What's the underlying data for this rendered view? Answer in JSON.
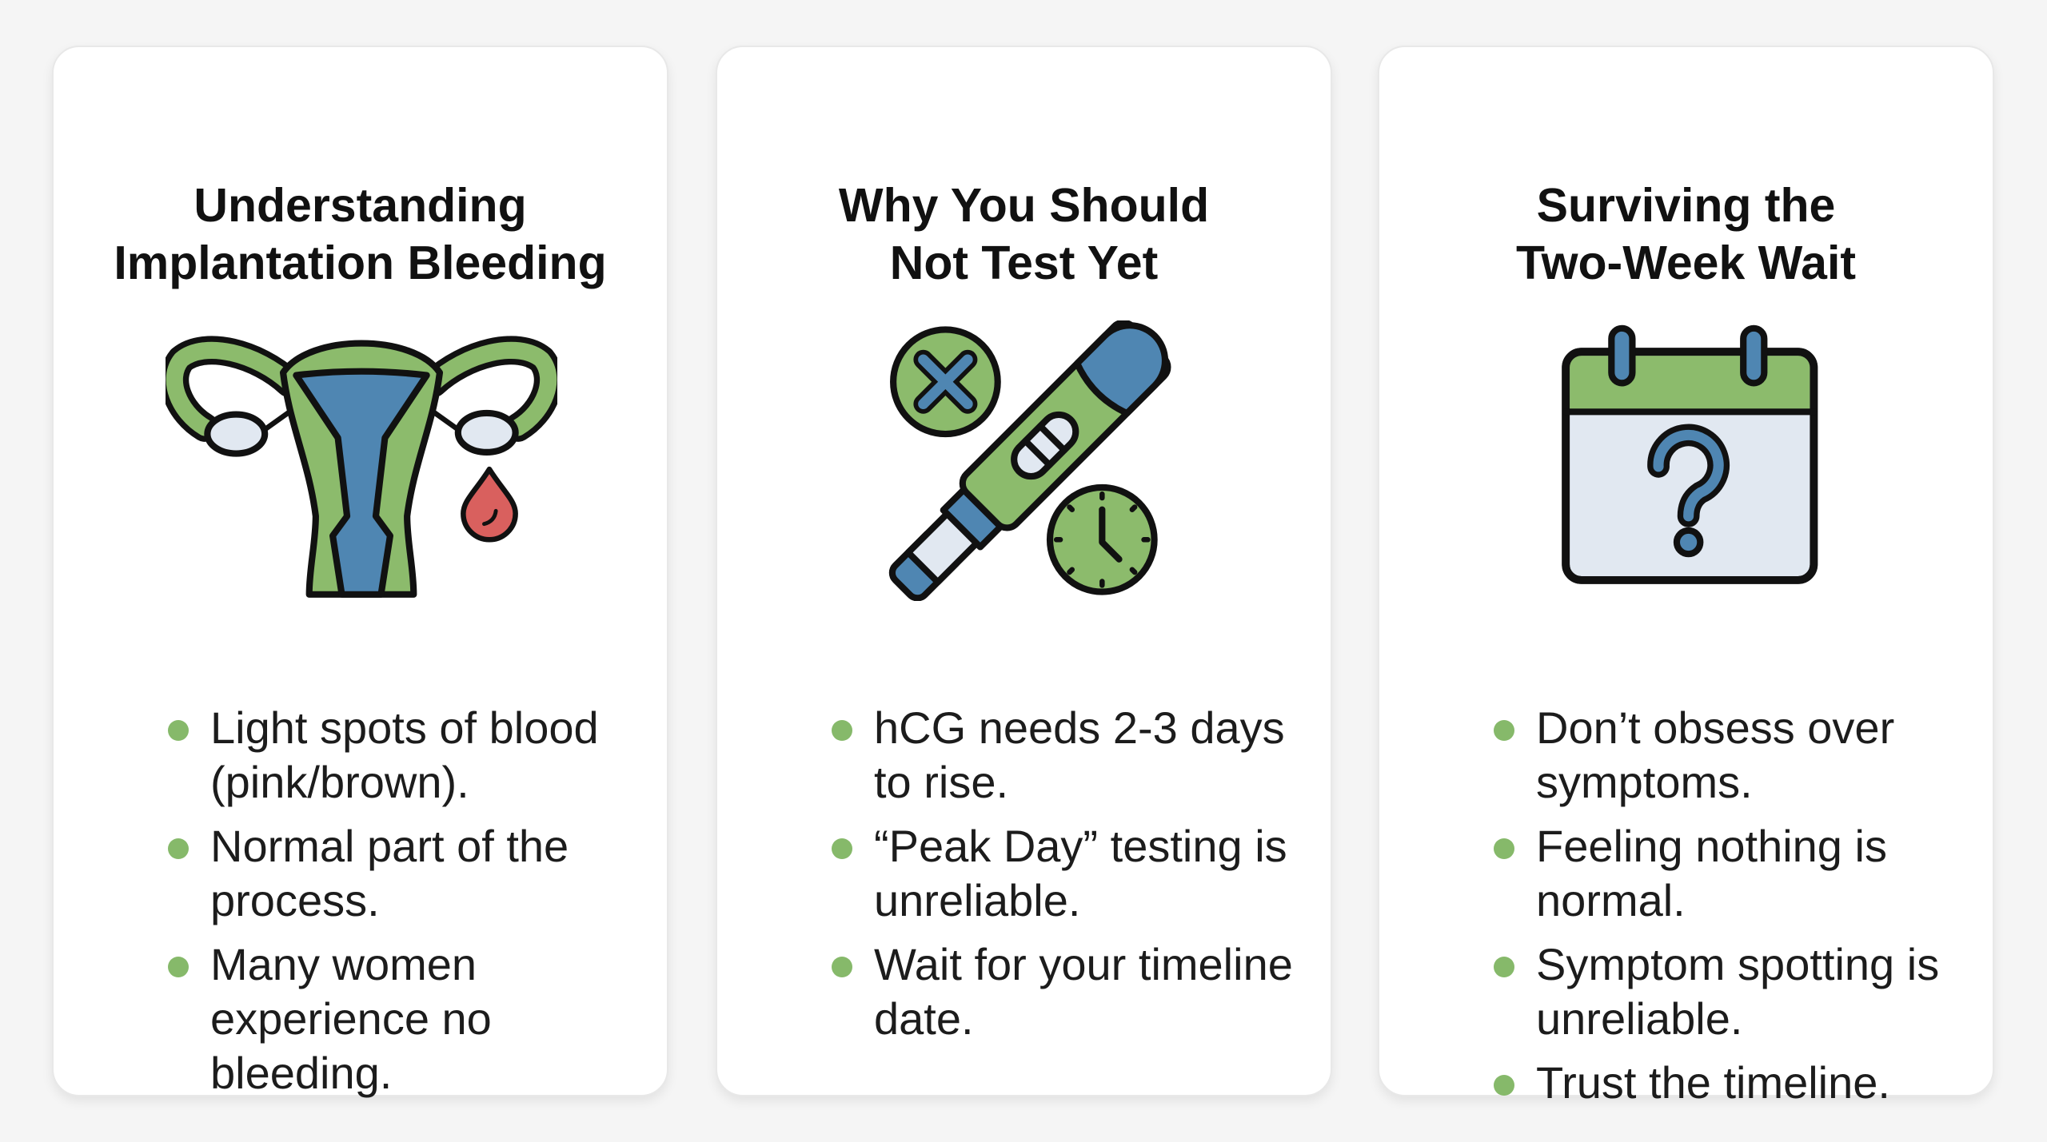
{
  "colors": {
    "green": "#8cbb6c",
    "blue": "#4f86b2",
    "light": "#e1e8f1",
    "red": "#d9605e",
    "outline": "#111111",
    "bullet": "#86b96a"
  },
  "cards": [
    {
      "title_lines": [
        "Understanding",
        "Implantation Bleeding"
      ],
      "icon": "uterus-icon",
      "bullets": [
        "Light spots of blood (pink/brown).",
        "Normal part of the process.",
        "Many women experience no bleeding."
      ]
    },
    {
      "title_lines": [
        "Why You Should",
        "Not Test Yet"
      ],
      "icon": "pregnancy-test-icon",
      "bullets": [
        "hCG needs 2-3 days to rise.",
        "“Peak Day” testing is unreliable.",
        "Wait for your timeline date."
      ]
    },
    {
      "title_lines": [
        "Surviving the",
        "Two-Week Wait"
      ],
      "icon": "calendar-question-icon",
      "bullets": [
        "Don’t obsess over symptoms.",
        "Feeling nothing is normal.",
        "Symptom spotting is unreliable.",
        "Trust the timeline."
      ]
    }
  ]
}
